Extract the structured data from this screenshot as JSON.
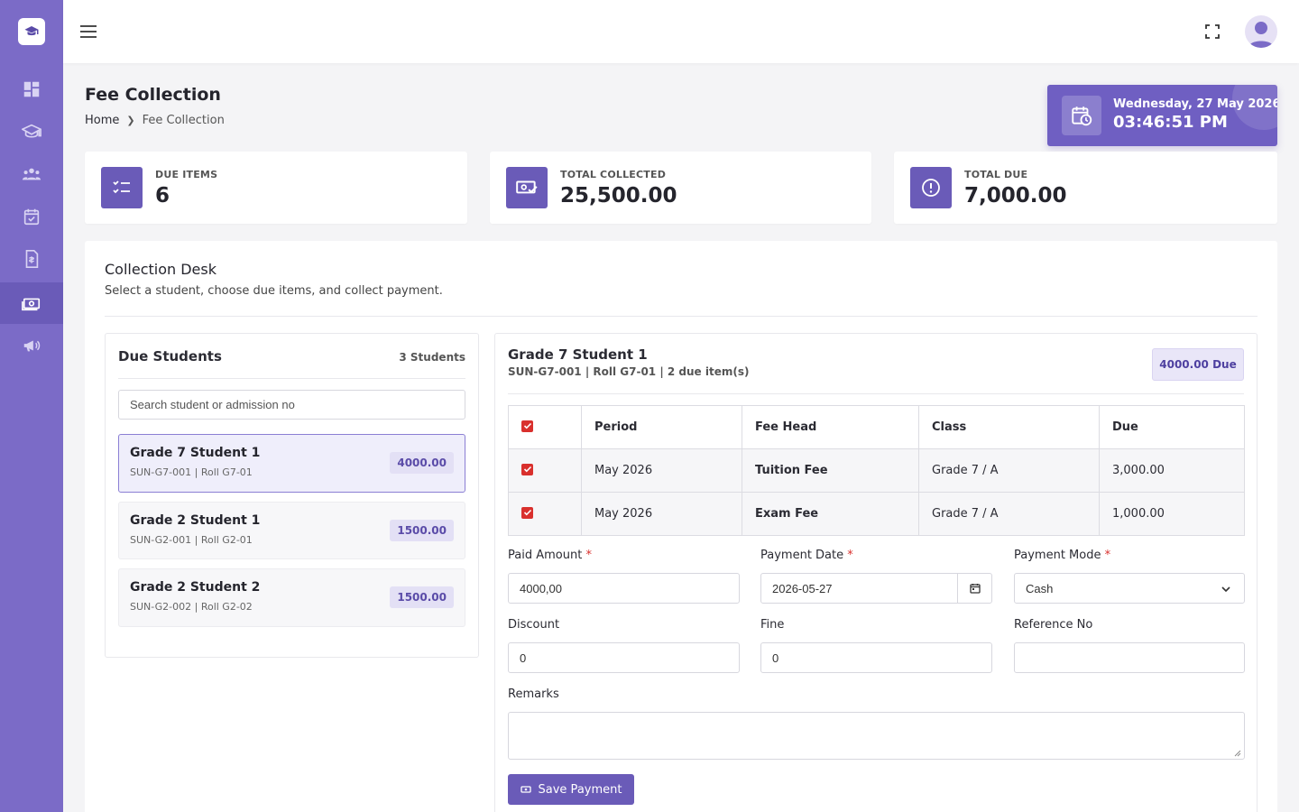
{
  "sidebar": {
    "items": [
      {
        "icon": "dashboard-icon"
      },
      {
        "icon": "graduation-cap-icon"
      },
      {
        "icon": "users-icon"
      },
      {
        "icon": "calendar-check-icon"
      },
      {
        "icon": "document-icon"
      },
      {
        "icon": "money-icon",
        "active": true
      },
      {
        "icon": "megaphone-icon"
      }
    ]
  },
  "page": {
    "title": "Fee Collection",
    "breadcrumb": {
      "home": "Home",
      "current": "Fee Collection"
    }
  },
  "clock": {
    "date": "Wednesday, 27 May 2026",
    "time": "03:46:51 PM"
  },
  "stats": [
    {
      "label": "DUE ITEMS",
      "value": "6"
    },
    {
      "label": "TOTAL COLLECTED",
      "value": "25,500.00"
    },
    {
      "label": "TOTAL DUE",
      "value": "7,000.00"
    }
  ],
  "desk": {
    "title": "Collection Desk",
    "subtitle": "Select a student, choose due items, and collect payment."
  },
  "due_students": {
    "title": "Due Students",
    "count": "3 Students",
    "search_placeholder": "Search student or admission no",
    "items": [
      {
        "name": "Grade 7 Student 1",
        "meta": "SUN-G7-001 | Roll G7-01",
        "amount": "4000.00"
      },
      {
        "name": "Grade 2 Student 1",
        "meta": "SUN-G2-001 | Roll G2-01",
        "amount": "1500.00"
      },
      {
        "name": "Grade 2 Student 2",
        "meta": "SUN-G2-002 | Roll G2-02",
        "amount": "1500.00"
      }
    ]
  },
  "detail": {
    "name": "Grade 7 Student 1",
    "meta": "SUN-G7-001 | Roll G7-01 | 2 due item(s)",
    "badge": "4000.00 Due",
    "table": {
      "headers": [
        "Period",
        "Fee Head",
        "Class",
        "Due"
      ],
      "rows": [
        {
          "period": "May 2026",
          "fee_head": "Tuition Fee",
          "class": "Grade 7 / A",
          "due": "3,000.00"
        },
        {
          "period": "May 2026",
          "fee_head": "Exam Fee",
          "class": "Grade 7 / A",
          "due": "1,000.00"
        }
      ]
    }
  },
  "form": {
    "paid_amount": {
      "label": "Paid Amount",
      "value": "4000,00"
    },
    "payment_date": {
      "label": "Payment Date",
      "value": "2026-05-27"
    },
    "payment_mode": {
      "label": "Payment Mode",
      "value": "Cash"
    },
    "discount": {
      "label": "Discount",
      "value": "0"
    },
    "fine": {
      "label": "Fine",
      "value": "0"
    },
    "reference_no": {
      "label": "Reference No",
      "value": ""
    },
    "remarks": {
      "label": "Remarks",
      "value": ""
    },
    "required_mark": "*",
    "save_label": "Save Payment"
  },
  "colors": {
    "accent": "#6a5bb8",
    "sidebar": "#7b6bc7",
    "required": "#d9302d"
  }
}
